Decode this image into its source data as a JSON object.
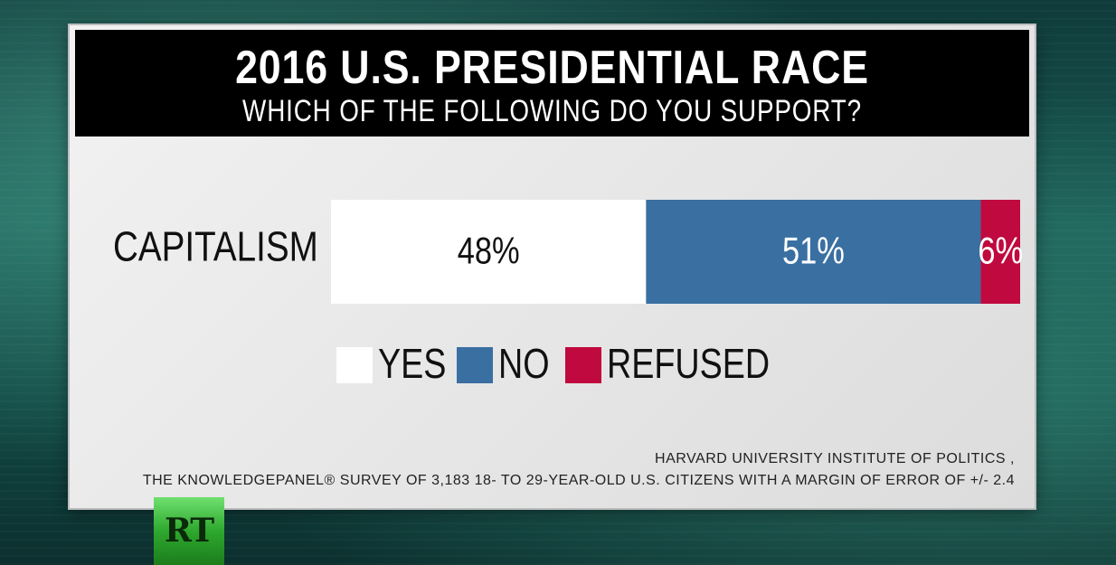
{
  "header": {
    "title": "2016 U.S. PRESIDENTIAL RACE",
    "subtitle": "WHICH OF THE FOLLOWING DO YOU SUPPORT?"
  },
  "chart_data": {
    "type": "bar",
    "orientation": "horizontal",
    "stacked": true,
    "categories": [
      "CAPITALISM"
    ],
    "series": [
      {
        "name": "YES",
        "values": [
          48
        ],
        "label": "48%",
        "color": "#ffffff"
      },
      {
        "name": "NO",
        "values": [
          51
        ],
        "label": "51%",
        "color": "#3a6fa2"
      },
      {
        "name": "REFUSED",
        "values": [
          6
        ],
        "label": "6%",
        "color": "#c0093e"
      }
    ],
    "legend": "bottom",
    "grid": false
  },
  "source": {
    "line1": "HARVARD UNIVERSITY INSTITUTE OF POLITICS ,",
    "line2": "THE KNOWLEDGEPANEL® SURVEY OF 3,183 18- TO 29-YEAR-OLD U.S. CITIZENS WITH A MARGIN OF ERROR OF +/- 2.4"
  },
  "logo": {
    "text": "RT",
    "color": "#2ea82e"
  }
}
